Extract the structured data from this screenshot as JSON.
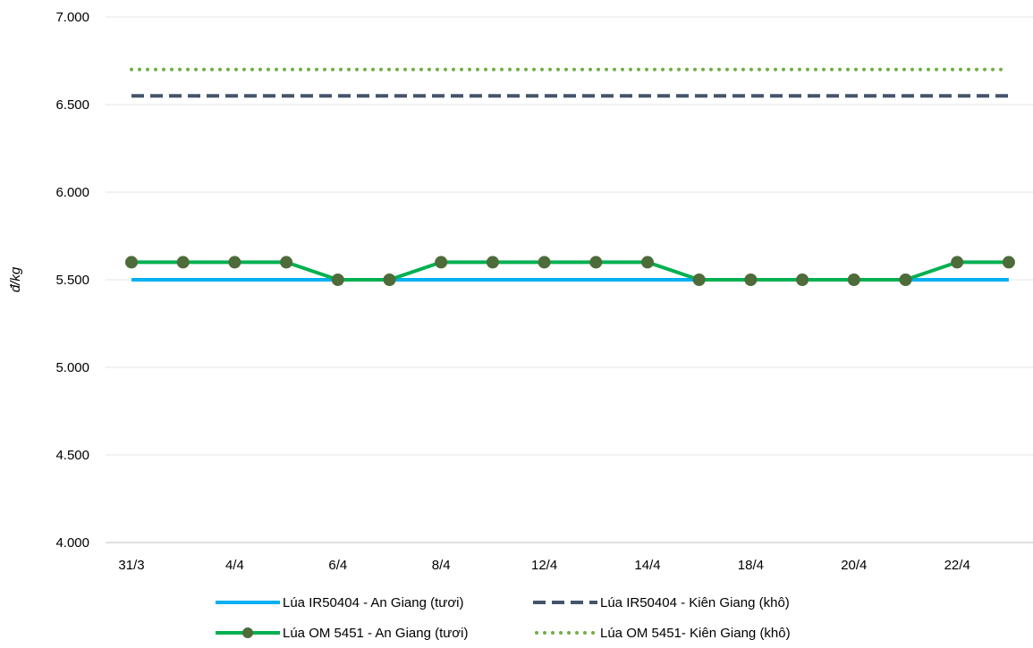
{
  "chart_data": {
    "type": "line",
    "title": "",
    "xlabel": "",
    "ylabel": "đ/kg",
    "ylim": [
      4000,
      7000
    ],
    "yticks": [
      4000,
      4500,
      5000,
      5500,
      6000,
      6500,
      7000
    ],
    "ytick_labels": [
      "4.000",
      "4.500",
      "5.000",
      "5.500",
      "6.000",
      "6.500",
      "7.000"
    ],
    "x_points": 18,
    "xtick_labels": [
      "31/3",
      "4/4",
      "6/4",
      "8/4",
      "12/4",
      "14/4",
      "18/4",
      "20/4",
      "22/4"
    ],
    "xtick_indices": [
      0,
      2,
      4,
      6,
      8,
      10,
      12,
      14,
      16
    ],
    "grid": true,
    "legend_position": "bottom",
    "series": [
      {
        "name": "Lúa IR50404 - An Giang  (tươi)",
        "style": "solid",
        "color": "#00b0f0",
        "values": [
          5500,
          5500,
          5500,
          5500,
          5500,
          5500,
          5500,
          5500,
          5500,
          5500,
          5500,
          5500,
          5500,
          5500,
          5500,
          5500,
          5500,
          5500
        ]
      },
      {
        "name": "Lúa IR50404 - Kiên Giang  (khô)",
        "style": "dashed",
        "color": "#44546a",
        "values": [
          6550,
          6550,
          6550,
          6550,
          6550,
          6550,
          6550,
          6550,
          6550,
          6550,
          6550,
          6550,
          6550,
          6550,
          6550,
          6550,
          6550,
          6550
        ]
      },
      {
        "name": "Lúa OM 5451 - An Giang (tươi)",
        "style": "solid-markers",
        "color": "#00b050",
        "marker_color": "#4e6b3a",
        "values": [
          5600,
          5600,
          5600,
          5600,
          5500,
          5500,
          5600,
          5600,
          5600,
          5600,
          5600,
          5500,
          5500,
          5500,
          5500,
          5500,
          5600,
          5600
        ]
      },
      {
        "name": "Lúa OM 5451- Kiên Giang (khô)",
        "style": "dotted",
        "color": "#70ad47",
        "values": [
          6700,
          6700,
          6700,
          6700,
          6700,
          6700,
          6700,
          6700,
          6700,
          6700,
          6700,
          6700,
          6700,
          6700,
          6700,
          6700,
          6700,
          6700
        ]
      }
    ]
  }
}
